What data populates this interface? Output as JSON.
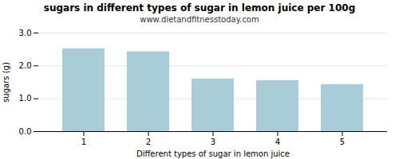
{
  "chart_data": {
    "type": "bar",
    "title": "sugars in different types of sugar in lemon juice per 100g",
    "subtitle": "www.dietandfitnesstoday.com",
    "xlabel": "Different types of sugar in lemon juice",
    "ylabel": "sugars (g)",
    "categories": [
      1,
      2,
      3,
      4,
      5
    ],
    "values": [
      2.52,
      2.43,
      1.6,
      1.55,
      1.43
    ],
    "color": "#a8cdd8",
    "ylim": [
      0,
      3.0
    ],
    "yticks": [
      0,
      1,
      2,
      3
    ],
    "grid": true
  }
}
